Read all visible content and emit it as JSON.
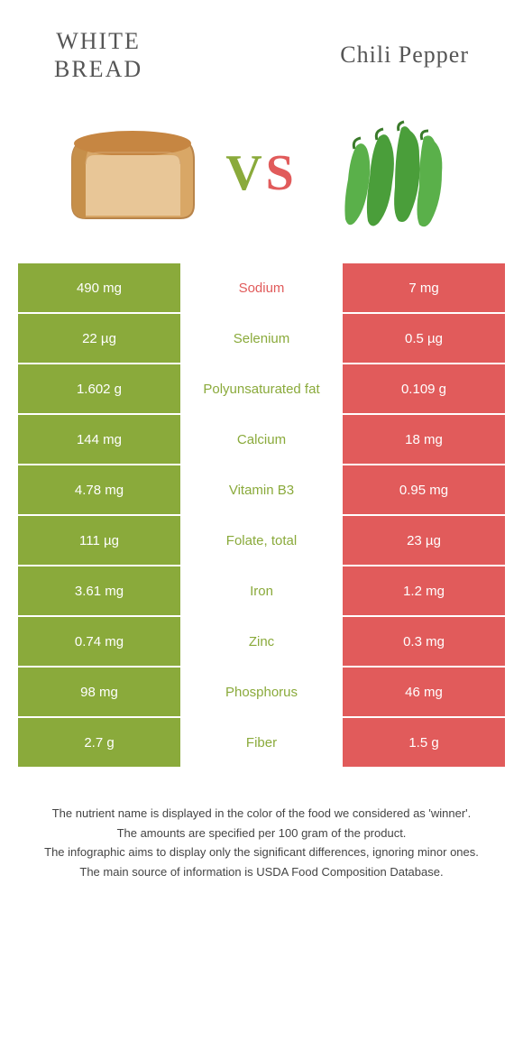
{
  "header": {
    "left_title_line1": "White",
    "left_title_line2": "Bread",
    "right_title": "Chili Pepper"
  },
  "vs": {
    "v": "V",
    "s": "S"
  },
  "colors": {
    "green": "#8aaa3b",
    "red": "#e15b5b",
    "row_gap": "#ffffff"
  },
  "table": {
    "rows": [
      {
        "left": "490 mg",
        "label": "Sodium",
        "right": "7 mg",
        "label_color": "#e15b5b"
      },
      {
        "left": "22 µg",
        "label": "Selenium",
        "right": "0.5 µg",
        "label_color": "#8aaa3b"
      },
      {
        "left": "1.602 g",
        "label": "Polyunsaturated fat",
        "right": "0.109 g",
        "label_color": "#8aaa3b"
      },
      {
        "left": "144 mg",
        "label": "Calcium",
        "right": "18 mg",
        "label_color": "#8aaa3b"
      },
      {
        "left": "4.78 mg",
        "label": "Vitamin B3",
        "right": "0.95 mg",
        "label_color": "#8aaa3b"
      },
      {
        "left": "111 µg",
        "label": "Folate, total",
        "right": "23 µg",
        "label_color": "#8aaa3b"
      },
      {
        "left": "3.61 mg",
        "label": "Iron",
        "right": "1.2 mg",
        "label_color": "#8aaa3b"
      },
      {
        "left": "0.74 mg",
        "label": "Zinc",
        "right": "0.3 mg",
        "label_color": "#8aaa3b"
      },
      {
        "left": "98 mg",
        "label": "Phosphorus",
        "right": "46 mg",
        "label_color": "#8aaa3b"
      },
      {
        "left": "2.7 g",
        "label": "Fiber",
        "right": "1.5 g",
        "label_color": "#8aaa3b"
      }
    ]
  },
  "footer": {
    "line1": "The nutrient name is displayed in the color of the food we considered as 'winner'.",
    "line2": "The amounts are specified per 100 gram of the product.",
    "line3": "The infographic aims to display only the significant differences, ignoring minor ones.",
    "line4": "The main source of information is USDA Food Composition Database."
  }
}
